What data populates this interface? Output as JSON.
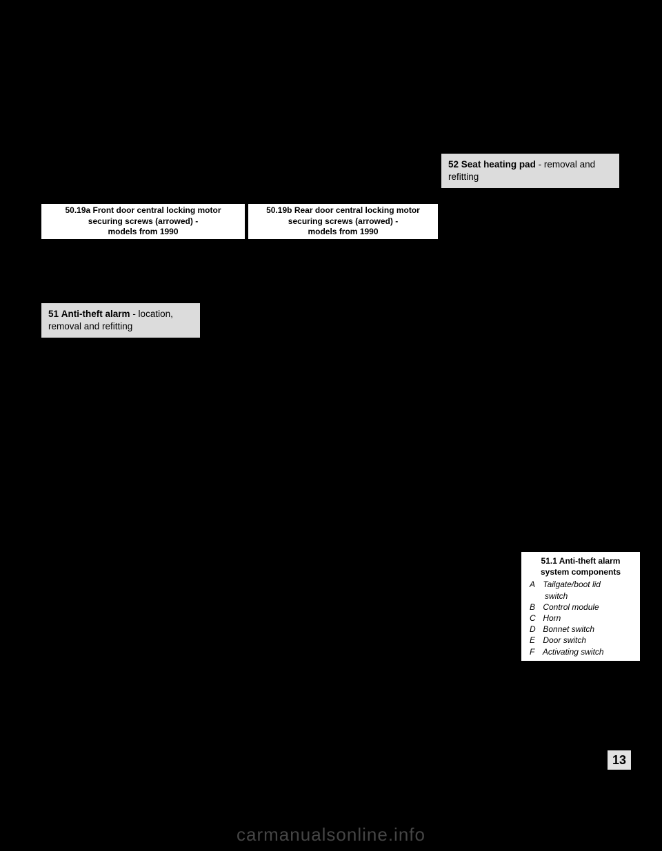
{
  "background_color": "#000000",
  "figure_captions": {
    "a": {
      "line1": "50.19a Front door central locking motor",
      "line2": "securing screws (arrowed) -",
      "line3": "models from 1990"
    },
    "b": {
      "line1": "50.19b Rear door central locking motor",
      "line2": "securing screws (arrowed) -",
      "line3": "models from 1990"
    }
  },
  "sections": {
    "s51": {
      "num": "51",
      "title_bold": "Anti-theft alarm",
      "title_rest": " - location, removal and refitting"
    },
    "s52": {
      "num": "52",
      "title_bold": "Seat heating pad",
      "title_rest": " - removal and refitting"
    }
  },
  "callout": {
    "title_line1": "51.1 Anti-theft alarm",
    "title_line2": "system components",
    "items": [
      {
        "k": "A",
        "v": "Tailgate/boot lid",
        "v2": "switch"
      },
      {
        "k": "B",
        "v": "Control module"
      },
      {
        "k": "C",
        "v": "Horn"
      },
      {
        "k": "D",
        "v": "Bonnet switch"
      },
      {
        "k": "E",
        "v": "Door switch"
      },
      {
        "k": "F",
        "v": "Activating switch"
      }
    ]
  },
  "page_tab": "13",
  "watermark": "carmanualsonline.info",
  "style": {
    "figcap_bg": "#ffffff",
    "figcap_fg": "#000000",
    "figcap_fontsize": 12,
    "section_header_bg": "#dcdcdc",
    "section_header_fg": "#000000",
    "section_header_fontsize": 13.5,
    "callout_bg": "#ffffff",
    "callout_fg": "#000000",
    "callout_fontsize": 12,
    "page_tab_bg": "#e2e2e2",
    "page_tab_fg": "#000000",
    "page_tab_fontsize": 18,
    "watermark_color": "#8a8a8a",
    "watermark_fontsize": 26
  }
}
